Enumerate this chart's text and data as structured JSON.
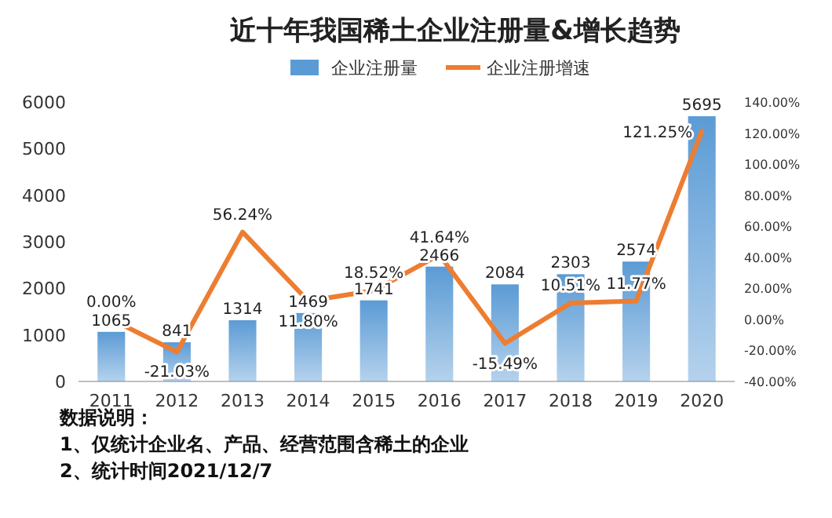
{
  "chart_data": {
    "type": "bar",
    "title": "近十年我国稀土企业注册量&增长趋势",
    "categories": [
      "2011",
      "2012",
      "2013",
      "2014",
      "2015",
      "2016",
      "2017",
      "2018",
      "2019",
      "2020"
    ],
    "series": [
      {
        "name": "企业注册量",
        "type": "bar",
        "color": "#5b9bd5",
        "values": [
          1065,
          841,
          1314,
          1469,
          1741,
          2466,
          2084,
          2303,
          2574,
          5695
        ]
      },
      {
        "name": "企业注册增速",
        "type": "line",
        "axis": "y2",
        "color": "#ed7d31",
        "values": [
          0.0,
          -21.03,
          56.24,
          11.8,
          18.52,
          41.64,
          -15.49,
          10.51,
          11.77,
          121.25
        ],
        "value_labels": [
          "0.00%",
          "-21.03%",
          "56.24%",
          "11.80%",
          "18.52%",
          "41.64%",
          "-15.49%",
          "10.51%",
          "11.77%",
          "121.25%"
        ]
      }
    ],
    "data_labels": true,
    "ylim": [
      0,
      6000
    ],
    "yticks": [
      0,
      1000,
      2000,
      3000,
      4000,
      5000,
      6000
    ],
    "y2lim": [
      -40,
      140
    ],
    "y2ticks": [
      {
        "value": -40,
        "label": "-40.00%"
      },
      {
        "value": -20,
        "label": "-20.00%"
      },
      {
        "value": 0,
        "label": "0.00%"
      },
      {
        "value": 20,
        "label": "20.00%"
      },
      {
        "value": 40,
        "label": "40.00%"
      },
      {
        "value": 60,
        "label": "60.00%"
      },
      {
        "value": 80,
        "label": "80.00%"
      },
      {
        "value": 100,
        "label": "100.00%"
      },
      {
        "value": 120,
        "label": "120.00%"
      },
      {
        "value": 140,
        "label": "140.00%"
      }
    ],
    "legend": "top",
    "grid": false,
    "annotations": [
      "数据说明：",
      "1、仅统计企业名、产品、经营范围含稀土的企业",
      "2、统计时间2021/12/7"
    ]
  }
}
